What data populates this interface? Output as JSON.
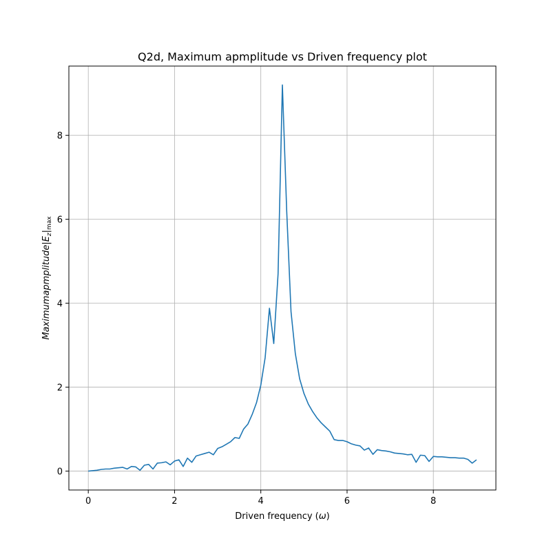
{
  "chart_data": {
    "type": "line",
    "title": "Q2d, Maximum apmplitude vs Driven frequency plot",
    "xlabel_text": "Driven frequency (",
    "xlabel_symbol": "ω",
    "xlabel_close": ")",
    "ylabel_text": "Maximumapmplitude|E",
    "ylabel_sub": "z",
    "ylabel_bar": "|",
    "ylabel_sub2": "max",
    "xlim": [
      -0.45,
      9.45
    ],
    "ylim": [
      -0.45,
      9.65
    ],
    "xticks": [
      0,
      2,
      4,
      6,
      8
    ],
    "yticks": [
      0,
      2,
      4,
      6,
      8
    ],
    "xtick_labels": [
      "0",
      "2",
      "4",
      "6",
      "8"
    ],
    "ytick_labels": [
      "0",
      "2",
      "4",
      "6",
      "8"
    ],
    "grid": true,
    "line_color": "#1f77b4",
    "series": [
      {
        "x": [
          0,
          0.1,
          0.2,
          0.3,
          0.4,
          0.5,
          0.6,
          0.7,
          0.8,
          0.9,
          1.0,
          1.1,
          1.2,
          1.3,
          1.4,
          1.5,
          1.6,
          1.7,
          1.8,
          1.9,
          2.0,
          2.1,
          2.2,
          2.3,
          2.4,
          2.5,
          2.6,
          2.7,
          2.8,
          2.9,
          3.0,
          3.1,
          3.2,
          3.3,
          3.4,
          3.5,
          3.6,
          3.7,
          3.8,
          3.9,
          4.0,
          4.1,
          4.2,
          4.3,
          4.4,
          4.5,
          4.6,
          4.7,
          4.8,
          4.9,
          5.0,
          5.1,
          5.2,
          5.3,
          5.4,
          5.5,
          5.6,
          5.7,
          5.8,
          5.9,
          6.0,
          6.1,
          6.2,
          6.3,
          6.4,
          6.5,
          6.6,
          6.7,
          6.8,
          6.9,
          7.0,
          7.1,
          7.2,
          7.3,
          7.4,
          7.5,
          7.6,
          7.7,
          7.8,
          7.9,
          8.0,
          8.1,
          8.2,
          8.3,
          8.4,
          8.5,
          8.6,
          8.7,
          8.8,
          8.9,
          9.0
        ],
        "y": [
          0.0,
          0.01,
          0.02,
          0.04,
          0.05,
          0.05,
          0.07,
          0.08,
          0.09,
          0.05,
          0.11,
          0.1,
          0.02,
          0.14,
          0.16,
          0.05,
          0.19,
          0.2,
          0.22,
          0.15,
          0.24,
          0.27,
          0.11,
          0.31,
          0.21,
          0.36,
          0.39,
          0.42,
          0.45,
          0.39,
          0.54,
          0.58,
          0.64,
          0.7,
          0.8,
          0.78,
          1.0,
          1.12,
          1.35,
          1.63,
          2.05,
          2.7,
          3.88,
          3.04,
          4.7,
          9.2,
          6.2,
          3.8,
          2.8,
          2.2,
          1.85,
          1.6,
          1.42,
          1.27,
          1.15,
          1.05,
          0.95,
          0.75,
          0.73,
          0.73,
          0.7,
          0.65,
          0.62,
          0.6,
          0.5,
          0.55,
          0.4,
          0.51,
          0.49,
          0.48,
          0.46,
          0.43,
          0.42,
          0.41,
          0.39,
          0.4,
          0.21,
          0.38,
          0.37,
          0.23,
          0.35,
          0.34,
          0.34,
          0.33,
          0.32,
          0.32,
          0.31,
          0.31,
          0.28,
          0.19,
          0.27
        ]
      }
    ]
  }
}
